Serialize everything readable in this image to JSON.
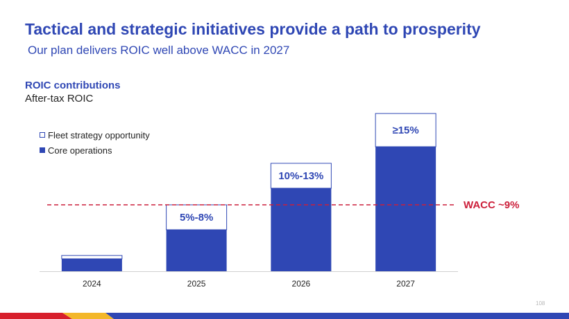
{
  "slide": {
    "title": "Tactical and strategic initiatives provide a path to prosperity",
    "subtitle": "Our plan delivers ROIC well above WACC in 2027",
    "section_title": "ROIC contributions",
    "section_subtitle": "After-tax ROIC",
    "page_number": "108"
  },
  "colors": {
    "primary": "#2f47b4",
    "wacc": "#cc1f3a",
    "footer_red": "#d71f2c",
    "footer_yellow": "#f3b72a",
    "footer_blue": "#2f47b4"
  },
  "chart_data": {
    "type": "bar",
    "stacked": true,
    "categories": [
      "2024",
      "2025",
      "2026",
      "2027"
    ],
    "series": [
      {
        "name": "Core operations",
        "values": [
          0.75,
          2.5,
          5.0,
          7.5
        ]
      },
      {
        "name": "Fleet strategy opportunity",
        "values": [
          0.2,
          1.5,
          1.5,
          2.0
        ]
      }
    ],
    "data_labels": [
      "",
      "5%-8%",
      "10%-13%",
      "≥15%"
    ],
    "ylim": [
      0,
      9.5
    ],
    "reference_line": {
      "label": "WACC ~9%",
      "value": 4.0
    },
    "legend": {
      "placement": "top-left"
    },
    "grid": false
  }
}
